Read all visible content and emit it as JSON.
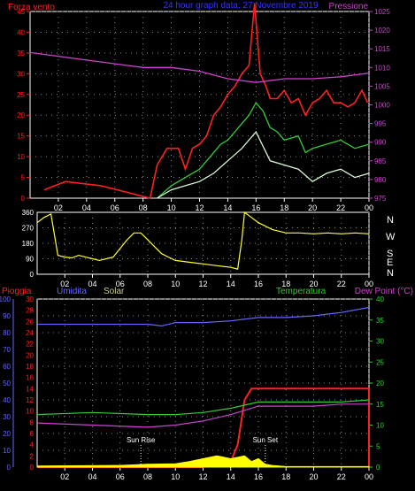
{
  "header": {
    "left_label": "Forza vento",
    "center_label": "24 hour graph data: 27 Novembre 2019",
    "right_label": "Pressione",
    "left_color": "#ff2020",
    "center_color": "#3333ff",
    "right_color": "#cc44cc"
  },
  "bottom_header": {
    "pioggia": "Pioggia",
    "umidita": "Umidita",
    "solar": "Solar",
    "temperatura": "Temperatura",
    "dewpoint": "Dew Point (°C)"
  },
  "compass": [
    "N",
    "W",
    "S",
    "E",
    "N"
  ],
  "x_ticks": [
    "02",
    "04",
    "06",
    "08",
    "10",
    "12",
    "14",
    "16",
    "18",
    "20",
    "22",
    "00"
  ],
  "markers": {
    "sunrise": "Sun Rise",
    "sunset": "Sun Set"
  },
  "chart_data": [
    {
      "type": "line",
      "x_unit": "hour",
      "xlim": [
        0,
        24
      ],
      "y_left": {
        "ticks": [
          "0",
          "5",
          "10",
          "15",
          "20",
          "25",
          "30",
          "35",
          "40",
          "45"
        ],
        "ylim": [
          0,
          45
        ]
      },
      "y_right": {
        "ticks": [
          "975",
          "980",
          "985",
          "990",
          "995",
          "1000",
          "1005",
          "1010",
          "1015",
          "1020",
          "1025"
        ],
        "ylim": [
          975,
          1025
        ]
      },
      "series": [
        {
          "name": "Forza vento",
          "color": "#ff2020",
          "axis": "left",
          "points": [
            [
              1,
              2
            ],
            [
              2.5,
              4
            ],
            [
              5,
              3
            ],
            [
              8.5,
              0
            ],
            [
              9,
              8
            ],
            [
              9.7,
              12
            ],
            [
              10.5,
              12
            ],
            [
              11,
              7
            ],
            [
              11.5,
              12
            ],
            [
              12,
              13
            ],
            [
              12.5,
              15
            ],
            [
              13,
              20
            ],
            [
              13.5,
              22
            ],
            [
              14,
              25
            ],
            [
              14.5,
              27
            ],
            [
              15,
              30
            ],
            [
              15.5,
              32
            ],
            [
              15.9,
              47
            ],
            [
              16.3,
              30
            ],
            [
              16.7,
              27
            ],
            [
              17,
              24
            ],
            [
              17.5,
              24
            ],
            [
              18,
              26
            ],
            [
              18.5,
              23
            ],
            [
              19,
              24
            ],
            [
              19.5,
              20
            ],
            [
              20,
              23
            ],
            [
              20.5,
              24
            ],
            [
              21,
              26
            ],
            [
              21.5,
              23
            ],
            [
              22,
              23
            ],
            [
              22.5,
              22
            ],
            [
              23,
              23
            ],
            [
              23.5,
              26
            ],
            [
              23.9,
              23
            ]
          ]
        },
        {
          "name": "",
          "color": "#33cc33",
          "axis": "left",
          "points": [
            [
              9,
              0
            ],
            [
              10,
              3
            ],
            [
              11,
              5
            ],
            [
              12,
              7
            ],
            [
              12.5,
              9
            ],
            [
              13,
              11
            ],
            [
              13.5,
              13
            ],
            [
              14,
              14
            ],
            [
              14.5,
              16
            ],
            [
              15,
              18
            ],
            [
              15.5,
              20
            ],
            [
              16,
              23
            ],
            [
              16.5,
              21
            ],
            [
              17,
              17
            ],
            [
              17.5,
              16
            ],
            [
              18,
              14
            ],
            [
              19,
              15
            ],
            [
              19.5,
              11
            ],
            [
              20,
              12
            ],
            [
              21,
              13
            ],
            [
              22,
              14
            ],
            [
              23,
              12
            ],
            [
              24,
              13
            ]
          ]
        },
        {
          "name": "",
          "color": "#d8f8d8",
          "axis": "left",
          "points": [
            [
              9,
              0
            ],
            [
              10,
              2
            ],
            [
              11,
              3
            ],
            [
              12,
              4
            ],
            [
              13,
              6
            ],
            [
              14,
              9
            ],
            [
              15,
              12
            ],
            [
              16,
              16
            ],
            [
              17,
              9
            ],
            [
              18,
              8
            ],
            [
              19,
              7
            ],
            [
              20,
              4
            ],
            [
              21,
              6
            ],
            [
              22,
              7
            ],
            [
              23,
              5
            ],
            [
              24,
              6
            ]
          ]
        },
        {
          "name": "Pressione",
          "color": "#cc44cc",
          "axis": "right",
          "points": [
            [
              0,
              1014
            ],
            [
              2,
              1013
            ],
            [
              4,
              1012
            ],
            [
              6,
              1011
            ],
            [
              8,
              1010
            ],
            [
              10,
              1010
            ],
            [
              12,
              1009
            ],
            [
              14,
              1007
            ],
            [
              16,
              1006
            ],
            [
              18,
              1007
            ],
            [
              20,
              1007
            ],
            [
              22,
              1007.5
            ],
            [
              24,
              1008.5
            ]
          ]
        }
      ]
    },
    {
      "type": "line",
      "x_unit": "hour",
      "xlim": [
        0,
        24
      ],
      "y_left": {
        "ticks": [
          "0",
          "90",
          "180",
          "270",
          "360"
        ],
        "ylim": [
          0,
          360
        ]
      },
      "series": [
        {
          "name": "",
          "color": "#ffff33",
          "points": [
            [
              0,
              300
            ],
            [
              0.5,
              330
            ],
            [
              1,
              350
            ],
            [
              1.5,
              110
            ],
            [
              2,
              100
            ],
            [
              2.5,
              95
            ],
            [
              3,
              110
            ],
            [
              3.5,
              100
            ],
            [
              4,
              90
            ],
            [
              4.5,
              80
            ],
            [
              5,
              90
            ],
            [
              5.5,
              100
            ],
            [
              6,
              150
            ],
            [
              6.5,
              200
            ],
            [
              7,
              240
            ],
            [
              7.5,
              240
            ],
            [
              8,
              200
            ],
            [
              8.5,
              160
            ],
            [
              9,
              120
            ],
            [
              9.5,
              100
            ],
            [
              10,
              80
            ],
            [
              11,
              70
            ],
            [
              12,
              60
            ],
            [
              13,
              50
            ],
            [
              14,
              40
            ],
            [
              14.5,
              30
            ],
            [
              14.8,
              200
            ],
            [
              15,
              360
            ],
            [
              15.5,
              330
            ],
            [
              16,
              300
            ],
            [
              17,
              260
            ],
            [
              18,
              240
            ],
            [
              19,
              240
            ],
            [
              20,
              235
            ],
            [
              21,
              240
            ],
            [
              22,
              235
            ],
            [
              23,
              240
            ],
            [
              24,
              235
            ]
          ]
        }
      ]
    },
    {
      "type": "line",
      "x_unit": "hour",
      "xlim": [
        0,
        24
      ],
      "y_axes": {
        "umidita": {
          "ticks": [
            "0",
            "10",
            "20",
            "30",
            "40",
            "50",
            "60",
            "70",
            "80",
            "90",
            "100"
          ],
          "ylim": [
            0,
            100
          ]
        },
        "pioggia": {
          "ticks": [
            "0",
            "2",
            "4",
            "6",
            "8",
            "10",
            "12",
            "14",
            "16",
            "18",
            "20",
            "22",
            "24",
            "26",
            "28",
            "30"
          ],
          "ylim": [
            0,
            30
          ]
        },
        "temperatura": {
          "ticks": [
            "0",
            "5",
            "10",
            "15",
            "20",
            "25",
            "30",
            "35",
            "40"
          ],
          "ylim": [
            0,
            40
          ]
        }
      },
      "series": [
        {
          "name": "Pioggia",
          "color": "#ff2020",
          "axis": "pioggia",
          "points": [
            [
              0,
              0
            ],
            [
              12,
              0
            ],
            [
              13,
              0.5
            ],
            [
              14,
              1
            ],
            [
              14.5,
              4
            ],
            [
              15,
              12
            ],
            [
              15.5,
              14
            ],
            [
              16,
              14
            ],
            [
              24,
              14
            ],
            [
              24,
              0
            ]
          ]
        },
        {
          "name": "Umidita",
          "color": "#6666ff",
          "axis": "umidita",
          "points": [
            [
              0,
              85
            ],
            [
              4,
              85
            ],
            [
              8,
              85
            ],
            [
              9,
              84
            ],
            [
              10,
              86
            ],
            [
              12,
              86
            ],
            [
              14,
              87
            ],
            [
              16,
              89
            ],
            [
              18,
              89
            ],
            [
              20,
              90
            ],
            [
              22,
              92
            ],
            [
              24,
              95
            ]
          ]
        },
        {
          "name": "Temperatura",
          "color": "#33cc33",
          "axis": "temperatura",
          "points": [
            [
              0,
              12.5
            ],
            [
              4,
              13
            ],
            [
              8,
              12.5
            ],
            [
              10,
              12.5
            ],
            [
              12,
              13
            ],
            [
              14,
              14
            ],
            [
              16,
              15.5
            ],
            [
              18,
              15.5
            ],
            [
              20,
              15.5
            ],
            [
              22,
              15.5
            ],
            [
              24,
              16
            ]
          ]
        },
        {
          "name": "Dew Point",
          "color": "#cc44cc",
          "axis": "temperatura",
          "points": [
            [
              0,
              10.5
            ],
            [
              4,
              10
            ],
            [
              8,
              9.5
            ],
            [
              10,
              10
            ],
            [
              12,
              11
            ],
            [
              14,
              12.5
            ],
            [
              16,
              14.5
            ],
            [
              18,
              14.5
            ],
            [
              20,
              14.5
            ],
            [
              22,
              15
            ],
            [
              24,
              15
            ]
          ]
        },
        {
          "name": "Solar",
          "color": "#ffff00",
          "axis": "pioggia",
          "points": [
            [
              0,
              0.2
            ],
            [
              6,
              0.3
            ],
            [
              8,
              0.5
            ],
            [
              10,
              0.6
            ],
            [
              11,
              1
            ],
            [
              12,
              1.5
            ],
            [
              13,
              2
            ],
            [
              14,
              1.5
            ],
            [
              15,
              2
            ],
            [
              15.5,
              1
            ],
            [
              16,
              1.5
            ],
            [
              16.5,
              0.5
            ],
            [
              17,
              0.3
            ],
            [
              18,
              0.1
            ],
            [
              24,
              0.1
            ]
          ]
        }
      ]
    }
  ]
}
